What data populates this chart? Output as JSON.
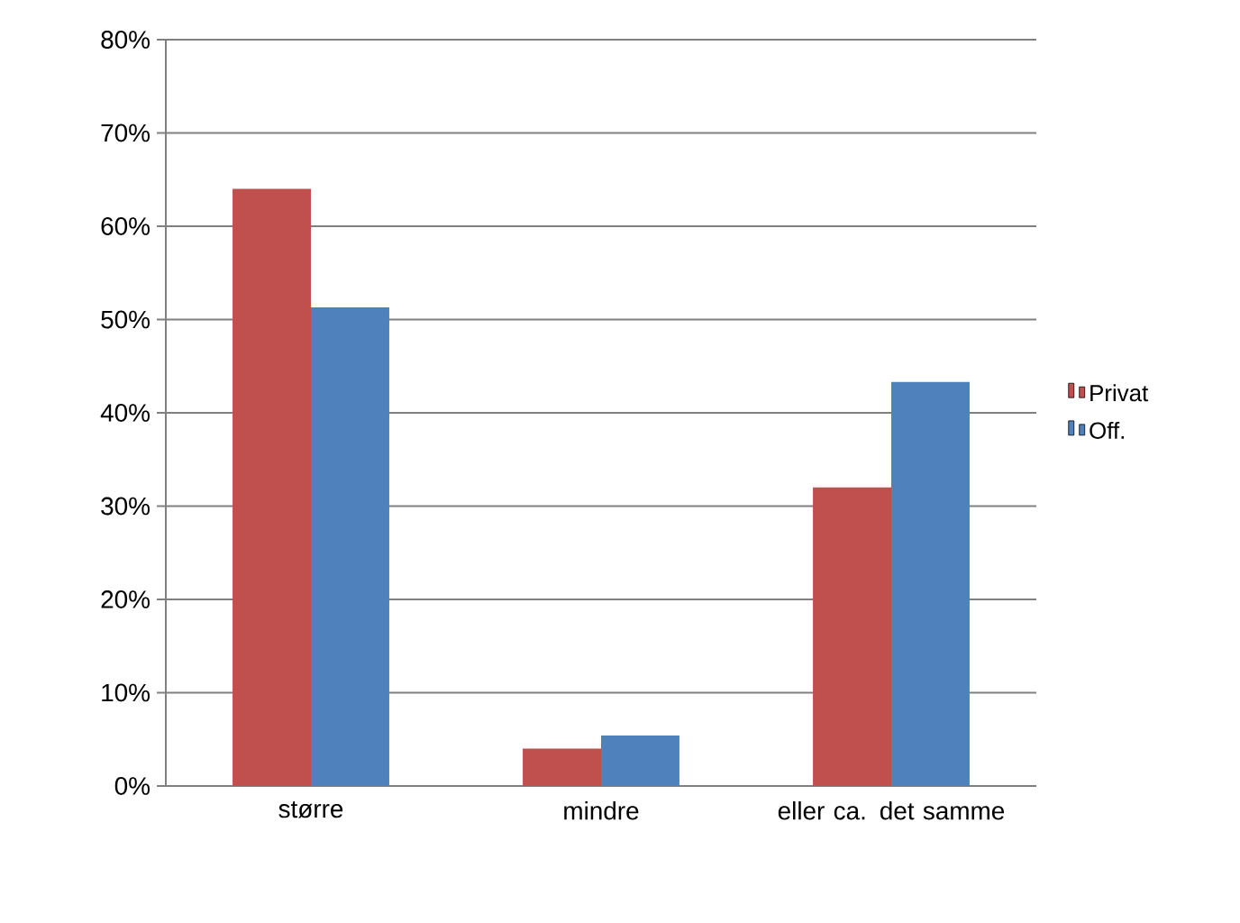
{
  "chart_data": {
    "type": "bar",
    "categories": [
      "større",
      "mindre",
      "eller ca. det samme"
    ],
    "series": [
      {
        "name": "Privat",
        "color": "#c0504d",
        "values": [
          64,
          4,
          32
        ]
      },
      {
        "name": "Off.",
        "color": "#4f81bd",
        "values": [
          51.3,
          5.4,
          43.3
        ]
      }
    ],
    "ylim": [
      0,
      80
    ],
    "yticks": [
      {
        "value": 0,
        "label": "0%"
      },
      {
        "value": 10,
        "label": "10%"
      },
      {
        "value": 20,
        "label": "20%"
      },
      {
        "value": 30,
        "label": "30%"
      },
      {
        "value": 40,
        "label": "40%"
      },
      {
        "value": 50,
        "label": "50%"
      },
      {
        "value": 60,
        "label": "60%"
      },
      {
        "value": 70,
        "label": "70%"
      },
      {
        "value": 80,
        "label": "80%"
      }
    ],
    "grid": "y",
    "legend": "right"
  }
}
